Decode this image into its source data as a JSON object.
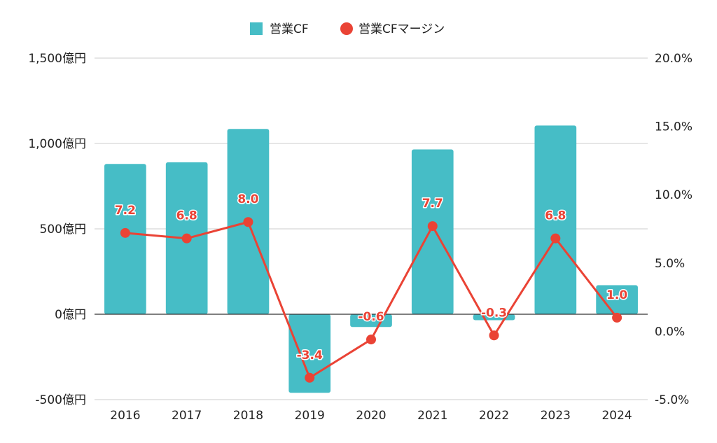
{
  "chart_data": {
    "type": "bar+line",
    "categories": [
      "2016",
      "2017",
      "2018",
      "2019",
      "2020",
      "2021",
      "2022",
      "2023",
      "2024"
    ],
    "series": [
      {
        "name": "営業CF",
        "type": "bar",
        "axis": "left",
        "color": "#46bdc6",
        "values": [
          880,
          890,
          1085,
          -460,
          -75,
          965,
          -35,
          1105,
          170
        ]
      },
      {
        "name": "営業CFマージン",
        "type": "line",
        "axis": "right",
        "color": "#ea4335",
        "values": [
          7.2,
          6.8,
          8.0,
          -3.4,
          -0.6,
          7.7,
          -0.3,
          6.8,
          1.0
        ],
        "labels": [
          "7.2",
          "6.8",
          "8.0",
          "-3.4",
          "-0.6",
          "7.7",
          "-0.3",
          "6.8",
          "1.0"
        ]
      }
    ],
    "y_left": {
      "ylim": [
        -500,
        1500
      ],
      "ticks": [
        1500,
        1000,
        500,
        0,
        -500
      ],
      "tick_labels": [
        "1,500億円",
        "1,000億円",
        "500億円",
        "0億円",
        "-500億円"
      ]
    },
    "y_right": {
      "ylim": [
        -5,
        20
      ],
      "ticks": [
        20,
        15,
        10,
        5,
        0,
        -5
      ],
      "tick_labels": [
        "20.0%",
        "15.0%",
        "10.0%",
        "5.0%",
        "0.0%",
        "-5.0%"
      ]
    },
    "legend": {
      "placement": "top-center",
      "entries": [
        "営業CF",
        "営業CFマージン"
      ]
    },
    "grid": true
  }
}
